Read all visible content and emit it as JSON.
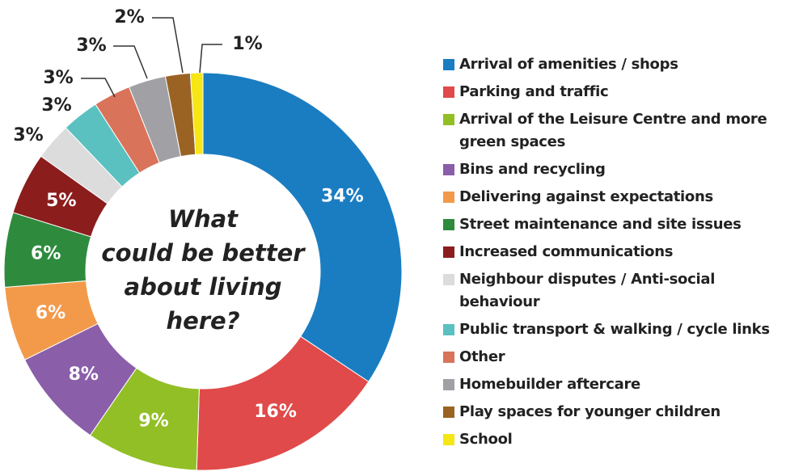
{
  "chart_data": {
    "type": "donut",
    "center_text": [
      "What",
      "could be better",
      "about living",
      "here?"
    ],
    "categories": [
      "Arrival of amenities / shops",
      "Parking and traffic",
      "Arrival of the Leisure Centre and more green spaces",
      "Bins and recycling",
      "Delivering against expectations",
      "Street maintenance and site issues",
      "Increased communications",
      "Neighbour disputes / Anti-social behaviour",
      "Public transport & walking / cycle links",
      "Other",
      "Homebuilder aftercare",
      "Play spaces for younger children",
      "School"
    ],
    "values": [
      34,
      16,
      9,
      8,
      6,
      6,
      5,
      3,
      3,
      3,
      3,
      2,
      1
    ],
    "value_labels": [
      "34%",
      "16%",
      "9%",
      "8%",
      "6%",
      "6%",
      "5%",
      "3%",
      "3%",
      "3%",
      "3%",
      "2%",
      "1%"
    ],
    "colors": [
      "#1a7dc2",
      "#e04a4a",
      "#93bf26",
      "#8a5ea8",
      "#f39a4a",
      "#2e8b3e",
      "#8c1d1d",
      "#dcdcdc",
      "#5bc0c0",
      "#d9735a",
      "#a0a0a5",
      "#9a6324",
      "#f5e614"
    ],
    "legend": "right"
  }
}
